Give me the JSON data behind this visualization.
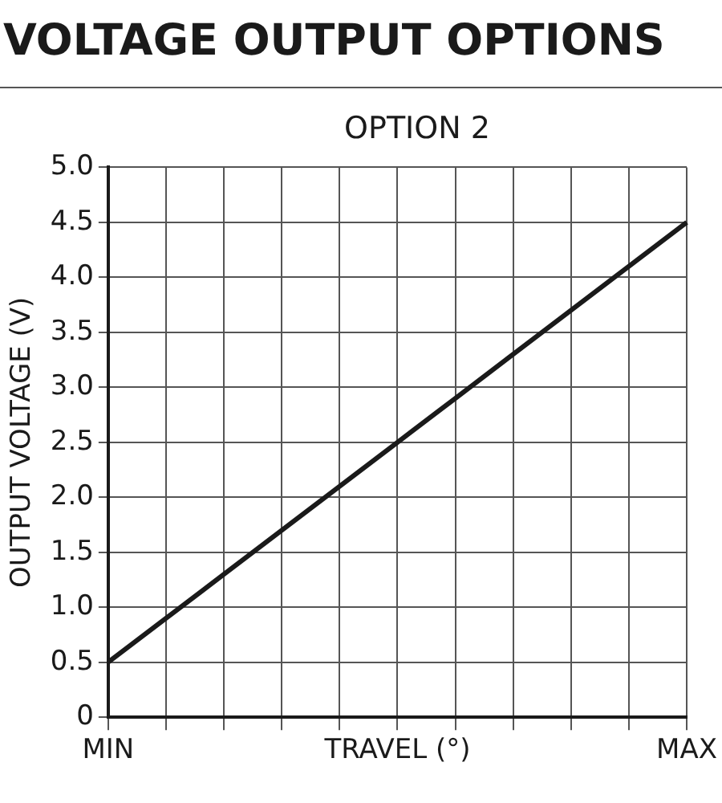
{
  "chart_data": {
    "type": "line",
    "title": "VOLTAGE OUTPUT OPTIONS",
    "subtitle": "OPTION 2",
    "ylabel": "OUTPUT VOLTAGE (V)",
    "categories": [
      "MIN",
      null,
      null,
      null,
      null,
      "TRAVEL (°)",
      null,
      null,
      null,
      null,
      "MAX"
    ],
    "series": [
      {
        "color": "#1a1a1a",
        "values": [
          0.5,
          0.9,
          1.3,
          1.7,
          2.1,
          2.5,
          2.9,
          3.3,
          3.7,
          4.1,
          4.5
        ]
      }
    ],
    "ylim": [
      0,
      5
    ],
    "yticks": [
      0,
      0.5,
      {
        "value": 1,
        "label": "1.0"
      },
      1.5,
      {
        "value": 2,
        "label": "2.0"
      },
      2.5,
      {
        "value": 3,
        "label": "3.0"
      },
      3.5,
      {
        "value": 4,
        "label": "4.0"
      },
      4.5,
      {
        "value": 5,
        "label": "5.0"
      }
    ],
    "grid": true,
    "legend": false,
    "marker": "none",
    "line_style": "solid"
  }
}
